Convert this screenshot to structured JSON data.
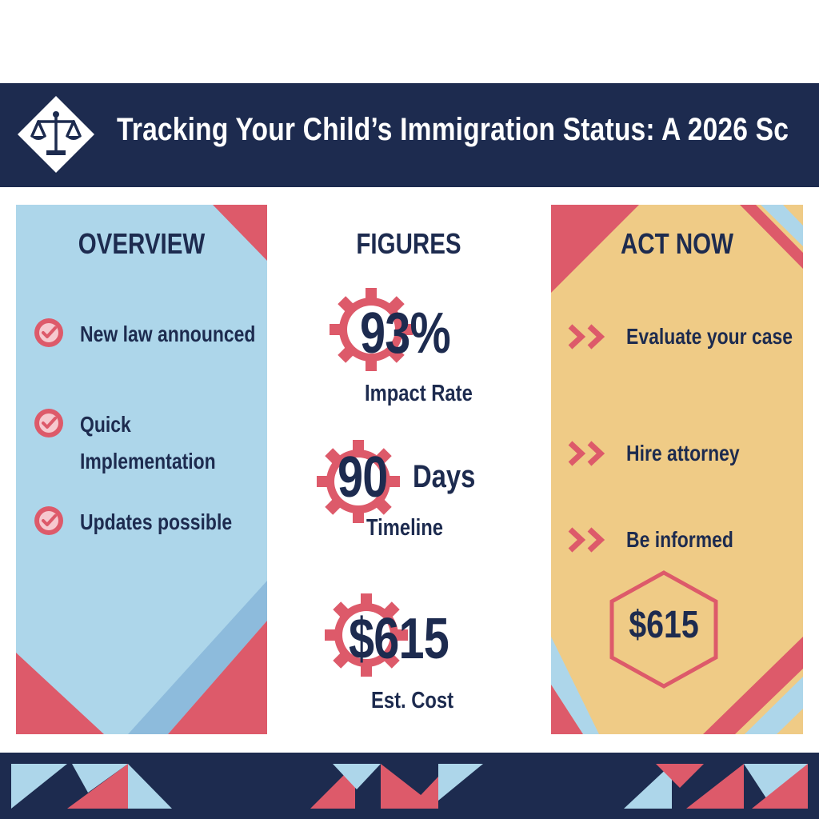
{
  "header": {
    "title": "Tracking Your Child’s Immigration Status: A 2026 Sc",
    "logo_icon": "scales-of-justice-icon"
  },
  "overview": {
    "heading": "OVERVIEW",
    "items": [
      {
        "label": "New law announced"
      },
      {
        "label_line1": "Quick",
        "label_line2": "Implementation"
      },
      {
        "label": "Updates possible"
      }
    ],
    "icon": "check-circle-icon"
  },
  "figures": {
    "heading": "FIGURES",
    "items": [
      {
        "value": "93%",
        "unit": "",
        "label": "Impact Rate"
      },
      {
        "value": "90",
        "unit": "Days",
        "label": "Timeline"
      },
      {
        "value": "$615",
        "unit": "",
        "label": "Est. Cost"
      }
    ],
    "icon": "gear-icon"
  },
  "act_now": {
    "heading": "ACT NOW",
    "items": [
      {
        "label": "Evaluate your case"
      },
      {
        "label": "Hire attorney"
      },
      {
        "label": "Be informed"
      }
    ],
    "icon": "double-chevron-right-icon",
    "price": "$615"
  },
  "colors": {
    "navy": "#1d2b4f",
    "red": "#dd5a6a",
    "light_blue": "#add6ea",
    "gold": "#efcb86"
  }
}
